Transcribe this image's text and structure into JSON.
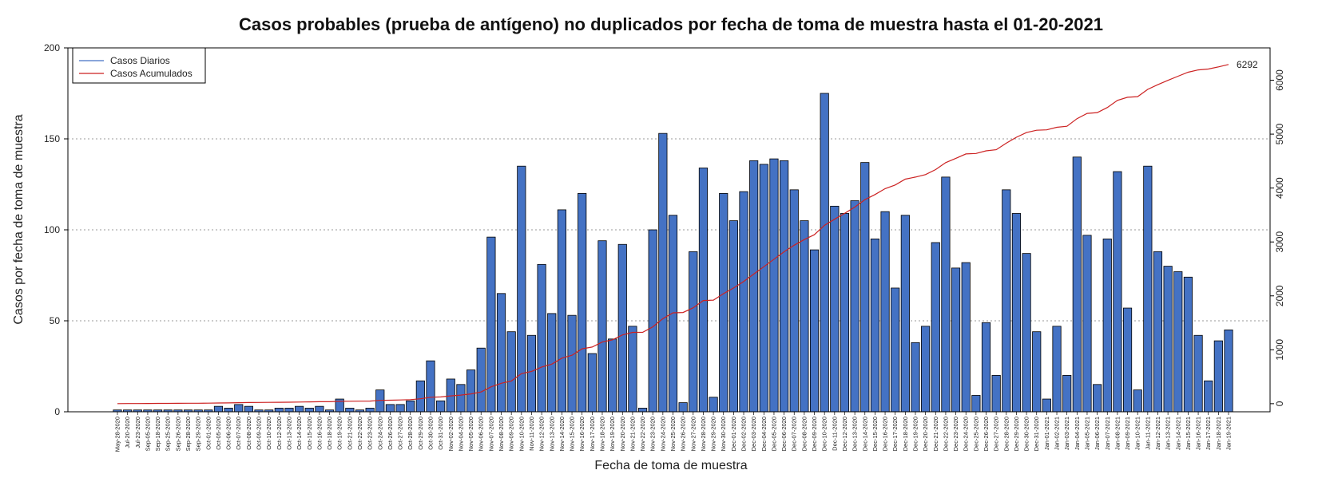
{
  "chart_data": {
    "type": "bar",
    "title": "Casos probables (prueba de antígeno) no duplicados por fecha de toma de muestra hasta el 01-20-2021",
    "xlabel": "Fecha de toma de muestra",
    "ylabel": "Casos por fecha de toma de muestra",
    "ylim": [
      0,
      200
    ],
    "yticks": [
      0,
      50,
      100,
      150,
      200
    ],
    "y2lim": [
      -150,
      6600
    ],
    "y2ticks": [
      0,
      1000,
      2000,
      3000,
      4000,
      5000,
      6000
    ],
    "grid": "horizontal dotted at 50, 100, 150",
    "legend_position": "top-left",
    "colors": {
      "bars": "#4472c4",
      "bar_border": "#000000",
      "line_daily": "#4472c4",
      "line_cumulative": "#cc2222",
      "grid": "#999999"
    },
    "categories": [
      "May-28-2020",
      "Jul-20-2020",
      "Jul-23-2020",
      "Sep-05-2020",
      "Sep-18-2020",
      "Sep-25-2020",
      "Sep-26-2020",
      "Sep-28-2020",
      "Sep-29-2020",
      "Oct-01-2020",
      "Oct-05-2020",
      "Oct-06-2020",
      "Oct-07-2020",
      "Oct-08-2020",
      "Oct-09-2020",
      "Oct-10-2020",
      "Oct-12-2020",
      "Oct-13-2020",
      "Oct-14-2020",
      "Oct-15-2020",
      "Oct-16-2020",
      "Oct-18-2020",
      "Oct-19-2020",
      "Oct-21-2020",
      "Oct-22-2020",
      "Oct-23-2020",
      "Oct-24-2020",
      "Oct-26-2020",
      "Oct-27-2020",
      "Oct-28-2020",
      "Oct-29-2020",
      "Oct-30-2020",
      "Oct-31-2020",
      "Nov-02-2020",
      "Nov-04-2020",
      "Nov-05-2020",
      "Nov-06-2020",
      "Nov-07-2020",
      "Nov-08-2020",
      "Nov-09-2020",
      "Nov-10-2020",
      "Nov-11-2020",
      "Nov-12-2020",
      "Nov-13-2020",
      "Nov-14-2020",
      "Nov-15-2020",
      "Nov-16-2020",
      "Nov-17-2020",
      "Nov-18-2020",
      "Nov-19-2020",
      "Nov-20-2020",
      "Nov-21-2020",
      "Nov-22-2020",
      "Nov-23-2020",
      "Nov-24-2020",
      "Nov-25-2020",
      "Nov-26-2020",
      "Nov-27-2020",
      "Nov-28-2020",
      "Nov-29-2020",
      "Nov-30-2020",
      "Dec-01-2020",
      "Dec-02-2020",
      "Dec-03-2020",
      "Dec-04-2020",
      "Dec-05-2020",
      "Dec-06-2020",
      "Dec-07-2020",
      "Dec-08-2020",
      "Dec-09-2020",
      "Dec-10-2020",
      "Dec-11-2020",
      "Dec-12-2020",
      "Dec-13-2020",
      "Dec-14-2020",
      "Dec-15-2020",
      "Dec-16-2020",
      "Dec-17-2020",
      "Dec-18-2020",
      "Dec-19-2020",
      "Dec-20-2020",
      "Dec-21-2020",
      "Dec-22-2020",
      "Dec-23-2020",
      "Dec-24-2020",
      "Dec-25-2020",
      "Dec-26-2020",
      "Dec-27-2020",
      "Dec-28-2020",
      "Dec-29-2020",
      "Dec-30-2020",
      "Dec-31-2020",
      "Jan-01-2021",
      "Jan-02-2021",
      "Jan-03-2021",
      "Jan-04-2021",
      "Jan-05-2021",
      "Jan-06-2021",
      "Jan-07-2021",
      "Jan-08-2021",
      "Jan-09-2021",
      "Jan-10-2021",
      "Jan-11-2021",
      "Jan-12-2021",
      "Jan-13-2021",
      "Jan-14-2021",
      "Jan-15-2021",
      "Jan-16-2021",
      "Jan-17-2021",
      "Jan-18-2021",
      "Jan-19-2021"
    ],
    "series": [
      {
        "name": "Casos Diarios",
        "values": [
          1,
          1,
          1,
          1,
          1,
          1,
          1,
          1,
          1,
          1,
          3,
          2,
          4,
          3,
          1,
          1,
          2,
          2,
          3,
          2,
          3,
          1,
          7,
          2,
          1,
          2,
          12,
          4,
          4,
          6,
          17,
          28,
          6,
          18,
          15,
          23,
          35,
          96,
          65,
          44,
          135,
          42,
          81,
          54,
          111,
          53,
          120,
          32,
          94,
          40,
          92,
          47,
          2,
          100,
          153,
          108,
          5,
          88,
          134,
          8,
          120,
          105,
          121,
          138,
          136,
          139,
          138,
          122,
          105,
          89,
          175,
          113,
          109,
          116,
          137,
          95,
          110,
          68,
          108,
          38,
          47,
          93,
          129,
          79,
          82,
          9,
          49,
          20,
          122,
          109,
          87,
          44,
          7,
          47,
          20,
          140,
          97,
          15,
          95,
          132,
          57,
          12,
          135,
          88,
          80,
          77,
          74,
          42,
          17,
          39,
          45
        ]
      },
      {
        "name": "Casos Acumulados",
        "values": [
          1,
          2,
          3,
          4,
          5,
          6,
          7,
          8,
          9,
          10,
          13,
          15,
          19,
          22,
          23,
          24,
          26,
          28,
          31,
          33,
          36,
          37,
          44,
          46,
          47,
          49,
          61,
          65,
          69,
          75,
          92,
          120,
          126,
          144,
          159,
          182,
          217,
          313,
          378,
          422,
          557,
          599,
          680,
          734,
          845,
          898,
          1018,
          1050,
          1144,
          1184,
          1276,
          1323,
          1325,
          1425,
          1578,
          1686,
          1691,
          1779,
          1913,
          1921,
          2041,
          2146,
          2267,
          2405,
          2541,
          2680,
          2818,
          2940,
          3045,
          3134,
          3309,
          3422,
          3531,
          3647,
          3784,
          3879,
          3989,
          4057,
          4165,
          4203,
          4250,
          4343,
          4472,
          4551,
          4633,
          4642,
          4691,
          4711,
          4833,
          4942,
          5029,
          5073,
          5080,
          5127,
          5147,
          5287,
          5384,
          5399,
          5494,
          5626,
          5683,
          5695,
          5830,
          5918,
          5998,
          6075,
          6149,
          6191,
          6208,
          6247,
          6292
        ]
      }
    ],
    "end_label": "6292"
  }
}
